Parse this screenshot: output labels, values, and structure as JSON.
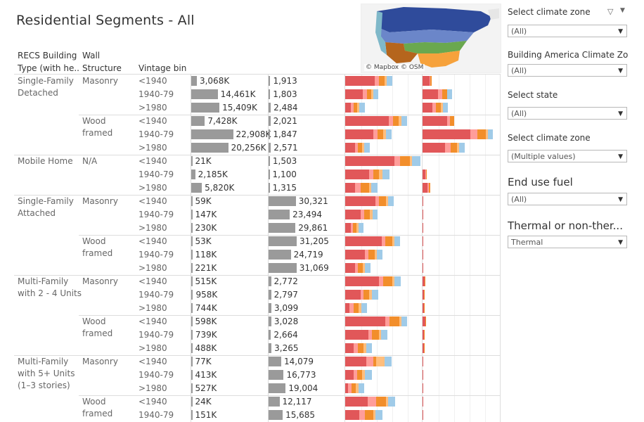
{
  "title": "Residential Segments - All",
  "headers": {
    "building_type": [
      "RECS Building",
      "Type (with he.."
    ],
    "wall_structure": [
      "Wall",
      "Structure"
    ],
    "vintage": "Vintage bin"
  },
  "map": {
    "credit": "© Mapbox  © OSM"
  },
  "colors": {
    "count_bar": "#9a9a9a",
    "stack": [
      "#e15759",
      "#ff9d9a",
      "#f28e2b",
      "#ffbe7d",
      "#a0cbe8"
    ],
    "grid": "#dddddd"
  },
  "groups": [
    {
      "type": [
        "Single-Family",
        "Detached"
      ],
      "walls": [
        {
          "label": [
            "Masonry"
          ],
          "rows": [
            {
              "vintage": "<1940",
              "count": "3,068K",
              "c": 3068,
              "units": "1,913",
              "u": 1913,
              "s1": [
                42,
                6,
                8,
                3,
                8
              ],
              "s2": [
                10,
                1,
                2,
                0,
                0
              ]
            },
            {
              "vintage": "1940-79",
              "count": "14,461K",
              "c": 14461,
              "units": "1,803",
              "u": 1803,
              "s1": [
                25,
                6,
                6,
                3,
                7
              ],
              "s2": [
                22,
                6,
                7,
                0,
                7
              ]
            },
            {
              "vintage": ">1980",
              "count": "15,409K",
              "c": 15409,
              "units": "2,484",
              "u": 2484,
              "s1": [
                8,
                4,
                5,
                3,
                8
              ],
              "s2": [
                14,
                5,
                7,
                3,
                7
              ]
            }
          ]
        },
        {
          "label": [
            "Wood",
            "framed"
          ],
          "rows": [
            {
              "vintage": "<1940",
              "count": "7,428K",
              "c": 7428,
              "units": "2,021",
              "u": 2021,
              "s1": [
                62,
                6,
                8,
                4,
                8
              ],
              "s2": [
                35,
                4,
                6,
                0,
                0
              ]
            },
            {
              "vintage": "1940-79",
              "count": "22,908K",
              "c": 22908,
              "units": "1,847",
              "u": 1847,
              "s1": [
                40,
                6,
                8,
                4,
                8
              ],
              "s2": [
                68,
                10,
                12,
                3,
                7
              ]
            },
            {
              "vintage": ">1980",
              "count": "20,256K",
              "c": 20256,
              "units": "2,571",
              "u": 2571,
              "s1": [
                14,
                4,
                6,
                3,
                8
              ],
              "s2": [
                32,
                8,
                9,
                3,
                8
              ]
            }
          ]
        }
      ]
    },
    {
      "type": [
        "Mobile Home"
      ],
      "walls": [
        {
          "label": [
            "N/A"
          ],
          "rows": [
            {
              "vintage": "<1940",
              "count": "21K",
              "c": 21,
              "units": "1,503",
              "u": 1503,
              "s1": [
                70,
                8,
                14,
                3,
                12
              ],
              "s2": [
                0,
                0,
                0,
                0,
                0
              ]
            },
            {
              "vintage": "1940-79",
              "count": "2,185K",
              "c": 2185,
              "units": "1,100",
              "u": 1100,
              "s1": [
                34,
                6,
                8,
                5,
                10
              ],
              "s2": [
                4,
                1,
                1,
                0,
                0
              ]
            },
            {
              "vintage": ">1980",
              "count": "5,820K",
              "c": 5820,
              "units": "1,315",
              "u": 1315,
              "s1": [
                14,
                8,
                12,
                3,
                9
              ],
              "s2": [
                7,
                2,
                2,
                0,
                0
              ]
            }
          ]
        }
      ]
    },
    {
      "type": [
        "Single-Family",
        "Attached"
      ],
      "walls": [
        {
          "label": [
            "Masonry"
          ],
          "rows": [
            {
              "vintage": "<1940",
              "count": "59K",
              "c": 59,
              "units": "30,321",
              "u": 30321,
              "s1": [
                43,
                5,
                10,
                3,
                8
              ],
              "s2": [
                1,
                0,
                0,
                0,
                0
              ]
            },
            {
              "vintage": "1940-79",
              "count": "147K",
              "c": 147,
              "units": "23,494",
              "u": 23494,
              "s1": [
                22,
                5,
                8,
                4,
                7
              ],
              "s2": [
                1,
                0,
                0,
                0,
                0
              ]
            },
            {
              "vintage": ">1980",
              "count": "230K",
              "c": 230,
              "units": "29,861",
              "u": 29861,
              "s1": [
                8,
                3,
                5,
                3,
                7
              ],
              "s2": [
                1,
                0,
                0,
                0,
                0
              ]
            }
          ]
        },
        {
          "label": [
            "Wood",
            "framed"
          ],
          "rows": [
            {
              "vintage": "<1940",
              "count": "53K",
              "c": 53,
              "units": "31,205",
              "u": 31205,
              "s1": [
                52,
                5,
                10,
                3,
                8
              ],
              "s2": [
                1,
                0,
                0,
                0,
                0
              ]
            },
            {
              "vintage": "1940-79",
              "count": "118K",
              "c": 118,
              "units": "24,719",
              "u": 24719,
              "s1": [
                28,
                5,
                9,
                3,
                8
              ],
              "s2": [
                1,
                0,
                0,
                0,
                0
              ]
            },
            {
              "vintage": ">1980",
              "count": "221K",
              "c": 221,
              "units": "31,069",
              "u": 31069,
              "s1": [
                14,
                4,
                7,
                3,
                8
              ],
              "s2": [
                1,
                0,
                0,
                0,
                0
              ]
            }
          ]
        }
      ]
    },
    {
      "type": [
        "Multi-Family",
        "with 2 - 4 Units"
      ],
      "walls": [
        {
          "label": [
            "Masonry"
          ],
          "rows": [
            {
              "vintage": "<1940",
              "count": "515K",
              "c": 515,
              "units": "2,772",
              "u": 2772,
              "s1": [
                48,
                6,
                13,
                3,
                9
              ],
              "s2": [
                3,
                0,
                1,
                0,
                0
              ]
            },
            {
              "vintage": "1940-79",
              "count": "958K",
              "c": 958,
              "units": "2,797",
              "u": 2797,
              "s1": [
                22,
                4,
                8,
                4,
                9
              ],
              "s2": [
                2,
                0,
                1,
                0,
                0
              ]
            },
            {
              "vintage": ">1980",
              "count": "744K",
              "c": 744,
              "units": "3,099",
              "u": 3099,
              "s1": [
                6,
                6,
                7,
                4,
                8
              ],
              "s2": [
                2,
                0,
                1,
                0,
                0
              ]
            }
          ]
        },
        {
          "label": [
            "Wood",
            "framed"
          ],
          "rows": [
            {
              "vintage": "<1940",
              "count": "598K",
              "c": 598,
              "units": "3,028",
              "u": 3028,
              "s1": [
                57,
                6,
                14,
                3,
                8
              ],
              "s2": [
                4,
                0,
                1,
                0,
                0
              ]
            },
            {
              "vintage": "1940-79",
              "count": "739K",
              "c": 739,
              "units": "2,664",
              "u": 2664,
              "s1": [
                33,
                5,
                10,
                3,
                9
              ],
              "s2": [
                2,
                0,
                1,
                0,
                0
              ]
            },
            {
              "vintage": ">1980",
              "count": "488K",
              "c": 488,
              "units": "3,265",
              "u": 3265,
              "s1": [
                12,
                6,
                8,
                4,
                8
              ],
              "s2": [
                2,
                0,
                1,
                0,
                0
              ]
            }
          ]
        }
      ]
    },
    {
      "type": [
        "Multi-Family",
        "with 5+ Units",
        "(1–3 stories)"
      ],
      "walls": [
        {
          "label": [
            "Masonry"
          ],
          "rows": [
            {
              "vintage": "<1940",
              "count": "77K",
              "c": 77,
              "units": "14,079",
              "u": 14079,
              "s1": [
                30,
                10,
                4,
                12,
                10
              ],
              "s2": [
                1,
                0,
                0,
                0,
                0
              ]
            },
            {
              "vintage": "1940-79",
              "count": "413K",
              "c": 413,
              "units": "16,773",
              "u": 16773,
              "s1": [
                12,
                5,
                7,
                4,
                10
              ],
              "s2": [
                1,
                0,
                0,
                0,
                0
              ]
            },
            {
              "vintage": ">1980",
              "count": "527K",
              "c": 527,
              "units": "19,004",
              "u": 19004,
              "s1": [
                4,
                5,
                6,
                4,
                8
              ],
              "s2": [
                1,
                0,
                0,
                0,
                0
              ]
            }
          ]
        },
        {
          "label": [
            "Wood",
            "framed"
          ],
          "rows": [
            {
              "vintage": "<1940",
              "count": "24K",
              "c": 24,
              "units": "12,117",
              "u": 12117,
              "s1": [
                32,
                12,
                14,
                3,
                10
              ],
              "s2": [
                1,
                0,
                0,
                0,
                0
              ]
            },
            {
              "vintage": "1940-79",
              "count": "151K",
              "c": 151,
              "units": "15,685",
              "u": 15685,
              "s1": [
                20,
                8,
                12,
                3,
                10
              ],
              "s2": [
                1,
                0,
                0,
                0,
                0
              ]
            }
          ]
        }
      ]
    }
  ],
  "filters": [
    {
      "label": "Select climate zone",
      "value": "(All)",
      "icons": true
    },
    {
      "label": "Building America Climate Zo...",
      "value": "(All)"
    },
    {
      "label": "Select state",
      "value": "(All)"
    },
    {
      "label": "Select climate zone",
      "value": "(Multiple values)"
    },
    {
      "label": "End use fuel",
      "value": "(All)",
      "big": true
    },
    {
      "label": "Thermal or non-ther...",
      "value": "Thermal",
      "big": true
    }
  ]
}
